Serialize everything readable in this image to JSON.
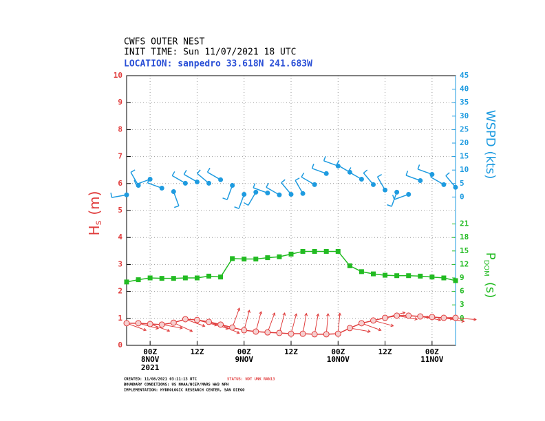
{
  "chart_data": {
    "type": "line",
    "title": "CWFS OUTER NEST",
    "subtitle": "INIT TIME: Sun 11/07/2021 18 UTC",
    "location": "LOCATION: sanpedro 33.618N 241.683W",
    "ylabel": "H",
    "ylabel_sub": "s",
    "ylabel_unit": "(m)",
    "y2label": "WSPD (kts)",
    "y3label": "P",
    "y3label_sub": "DOM",
    "y3label_unit": "(s)",
    "xlim": [
      0,
      84
    ],
    "xticks": [
      {
        "value": 6,
        "label": "00Z"
      },
      {
        "value": 18,
        "label": "12Z"
      },
      {
        "value": 30,
        "label": "00Z"
      },
      {
        "value": 42,
        "label": "12Z"
      },
      {
        "value": 54,
        "label": "00Z"
      },
      {
        "value": 66,
        "label": "12Z"
      },
      {
        "value": 78,
        "label": "00Z"
      }
    ],
    "xdates": [
      {
        "value": 6,
        "label": "8NOV"
      },
      {
        "value": 30,
        "label": "9NOV"
      },
      {
        "value": 54,
        "label": "10NOV"
      },
      {
        "value": 78,
        "label": "11NOV"
      }
    ],
    "xyear": {
      "value": 6,
      "label": "2021"
    },
    "ylim": [
      0,
      10
    ],
    "yticks": [
      0,
      1,
      2,
      3,
      4,
      5,
      6,
      7,
      8,
      9,
      10
    ],
    "y2lim": [
      -55,
      45
    ],
    "y2ticks": [
      0,
      5,
      10,
      15,
      20,
      25,
      30,
      35,
      40,
      45
    ],
    "y3lim": [
      -6,
      54
    ],
    "y3ticks": [
      0,
      3,
      6,
      9,
      12,
      15,
      18,
      21
    ],
    "grid": true,
    "x": [
      0,
      3,
      6,
      9,
      12,
      15,
      18,
      21,
      24,
      27,
      30,
      33,
      36,
      39,
      42,
      45,
      48,
      51,
      54,
      57,
      60,
      63,
      66,
      69,
      72,
      75,
      78,
      81,
      84
    ],
    "series": [
      {
        "color": "#e03c3c",
        "axis": "y",
        "values": [
          0.82,
          0.82,
          0.79,
          0.77,
          0.84,
          0.97,
          0.94,
          0.87,
          0.77,
          0.66,
          0.56,
          0.51,
          0.48,
          0.46,
          0.43,
          0.43,
          0.41,
          0.41,
          0.43,
          0.64,
          0.82,
          0.92,
          1.02,
          1.1,
          1.1,
          1.07,
          1.05,
          1.02,
          1.02
        ],
        "direction": [
          110,
          105,
          110,
          100,
          115,
          110,
          105,
          110,
          115,
          20,
          15,
          15,
          20,
          15,
          15,
          10,
          10,
          5,
          5,
          100,
          110,
          105,
          75,
          100,
          95,
          100,
          95,
          100,
          95
        ]
      },
      {
        "color": "#1e9be0",
        "axis": "y2",
        "values": [
          0.8,
          4.3,
          6.6,
          3.3,
          2.0,
          5.1,
          5.6,
          5.1,
          6.4,
          4.3,
          1.0,
          1.8,
          1.5,
          0.8,
          1.0,
          1.3,
          4.6,
          8.7,
          11.5,
          9.2,
          6.6,
          4.6,
          2.6,
          1.8,
          1.0,
          6.1,
          8.4,
          4.6,
          3.6
        ],
        "direction": [
          260,
          330,
          250,
          290,
          160,
          300,
          300,
          310,
          300,
          200,
          200,
          210,
          290,
          300,
          320,
          330,
          300,
          290,
          290,
          300,
          300,
          320,
          330,
          200,
          250,
          290,
          290,
          300,
          320
        ]
      },
      {
        "color": "#22bb22",
        "axis": "y3",
        "values": [
          8.1,
          8.6,
          9.0,
          8.9,
          8.9,
          9.0,
          9.0,
          9.4,
          9.2,
          13.3,
          13.2,
          13.2,
          13.5,
          13.7,
          14.3,
          14.9,
          14.9,
          14.9,
          14.9,
          11.7,
          10.4,
          9.9,
          9.6,
          9.5,
          9.5,
          9.4,
          9.2,
          9.0,
          8.4
        ]
      }
    ],
    "footer": {
      "created": "CREATED: 11/08/2021 03:11:13 UTC",
      "status": "STATUS: NOT UNK RAN13",
      "boundary": "BOUNDARY CONDITIONS: US NOAA/NCEP/MARS WW3 NPH",
      "implementation": "IMPLEMENTATION: HYDROLOGIC RESEARCH CENTER, SAN DIEGO"
    }
  }
}
